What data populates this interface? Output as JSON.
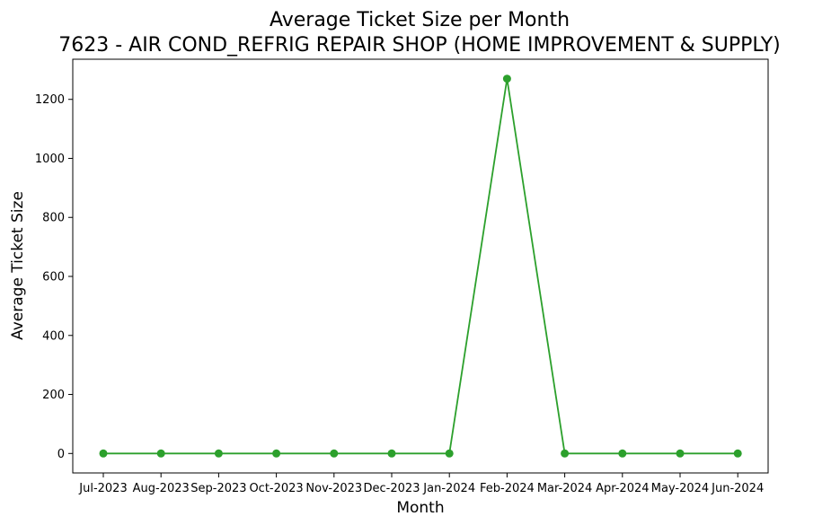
{
  "chart_data": {
    "type": "line",
    "title": "Average Ticket Size per Month",
    "subtitle": "7623 - AIR COND_REFRIG REPAIR SHOP (HOME IMPROVEMENT & SUPPLY)",
    "xlabel": "Month",
    "ylabel": "Average Ticket Size",
    "categories": [
      "Jul-2023",
      "Aug-2023",
      "Sep-2023",
      "Oct-2023",
      "Nov-2023",
      "Dec-2023",
      "Jan-2024",
      "Feb-2024",
      "Mar-2024",
      "Apr-2024",
      "May-2024",
      "Jun-2024"
    ],
    "series": [
      {
        "values": [
          0,
          0,
          0,
          0,
          0,
          0,
          0,
          1270,
          0,
          0,
          0,
          0
        ]
      }
    ],
    "y_ticks": [
      0,
      200,
      400,
      600,
      800,
      1000,
      1200
    ],
    "ylim": [
      -66,
      1336
    ],
    "grid": false,
    "legend": "none",
    "colors": {
      "line": "#2ca02c",
      "axes": "#000000",
      "background": "#ffffff"
    }
  }
}
